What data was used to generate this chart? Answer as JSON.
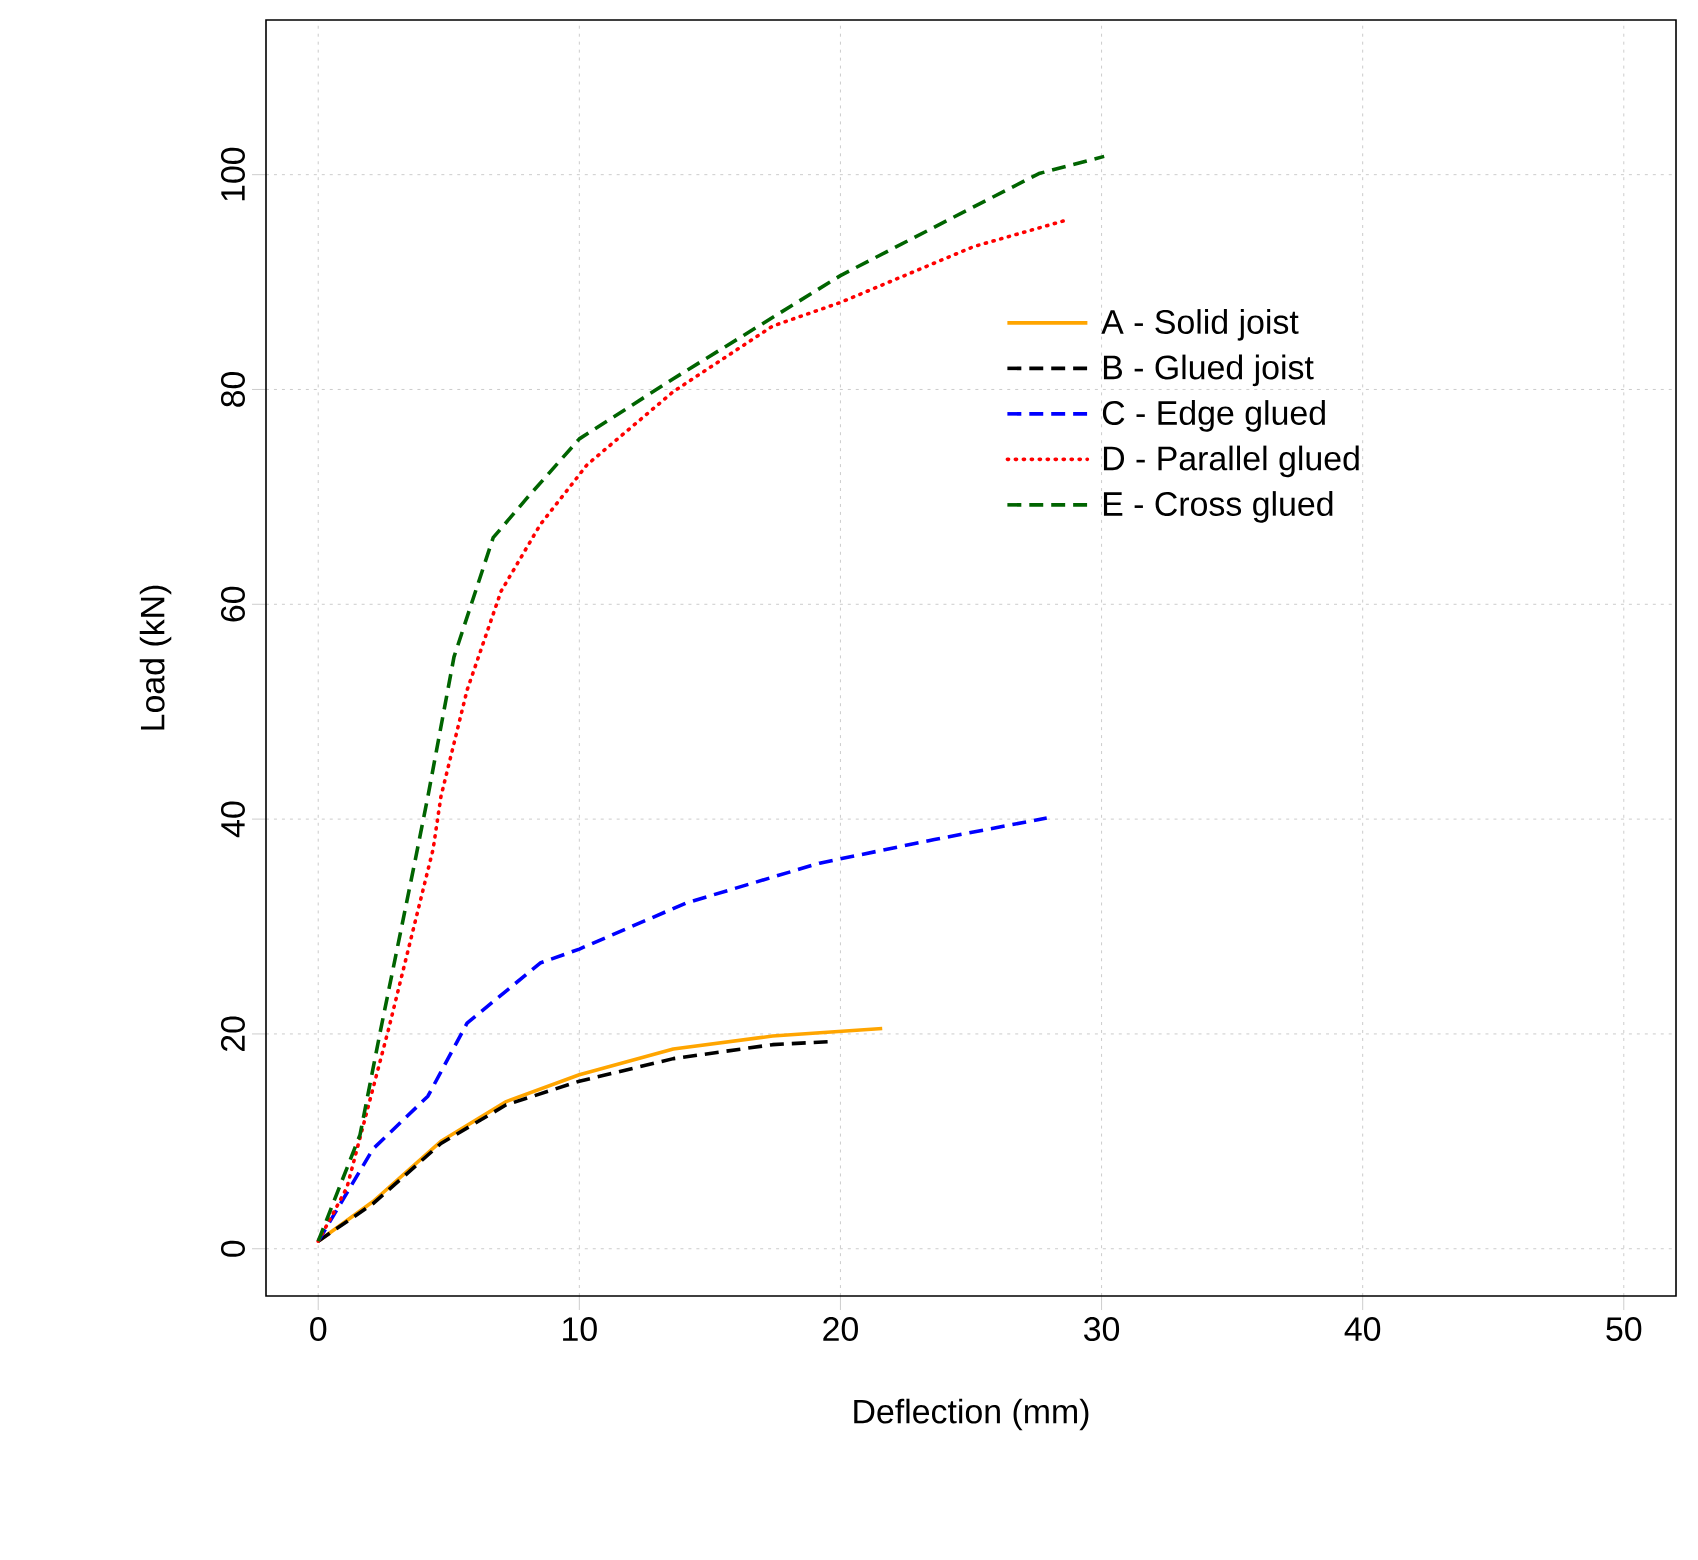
{
  "chart_data": {
    "type": "line",
    "xlabel": "Deflection (mm)",
    "ylabel": "Load (kN)",
    "xlim": [
      -2,
      52
    ],
    "ylim": [
      -4.4,
      114.4
    ],
    "xticks": [
      0,
      10,
      20,
      30,
      40,
      50
    ],
    "yticks": [
      0,
      20,
      40,
      60,
      80,
      100
    ],
    "grid": true,
    "legend": "right",
    "marker": "none",
    "series": [
      {
        "name": "A - Solid joist",
        "color": "#ffa500",
        "line_style": "solid",
        "x": [
          0,
          2.1,
          4.7,
          7.2,
          10,
          13.6,
          17.4,
          21.6
        ],
        "values": [
          0.7,
          4.4,
          10,
          13.7,
          16.2,
          18.6,
          19.8,
          20.5
        ]
      },
      {
        "name": "B - Glued joist",
        "color": "#000000",
        "line_style": "dashed",
        "x": [
          0,
          2.1,
          4.7,
          7.2,
          10,
          13.6,
          17.4,
          19.7
        ],
        "values": [
          0.7,
          4.2,
          9.8,
          13.4,
          15.6,
          17.7,
          19,
          19.3
        ]
      },
      {
        "name": "C - Edge glued",
        "color": "#0000ff",
        "line_style": "dashed",
        "x": [
          0,
          2.1,
          4.2,
          5.7,
          8.5,
          10,
          14.1,
          19.2,
          23.6,
          27.9
        ],
        "values": [
          0.7,
          9.3,
          14.2,
          21,
          26.6,
          27.9,
          32.2,
          35.9,
          38.1,
          40.1
        ]
      },
      {
        "name": "D - Parallel glued",
        "color": "#ff0000",
        "line_style": "dotted",
        "x": [
          0,
          1.1,
          2.7,
          4.4,
          4.7,
          5.7,
          7.0,
          8.5,
          10.3,
          13.6,
          17.4,
          20,
          25.1,
          28.7
        ],
        "values": [
          0.7,
          5.7,
          20.5,
          37.2,
          42.1,
          52,
          61.2,
          67.4,
          73,
          79.8,
          85.9,
          88.1,
          93.3,
          95.8
        ]
      },
      {
        "name": "E - Cross glued",
        "color": "#006400",
        "line_style": "dashed",
        "x": [
          0,
          1.6,
          2.4,
          3.7,
          4.2,
          5.2,
          6.7,
          8.0,
          10,
          13.6,
          20,
          25.1,
          27.6,
          30.1
        ],
        "values": [
          0.7,
          10.6,
          20.5,
          36,
          42.1,
          55.1,
          66.2,
          69.9,
          75.4,
          81,
          90.6,
          97,
          100.1,
          101.7
        ]
      }
    ]
  }
}
